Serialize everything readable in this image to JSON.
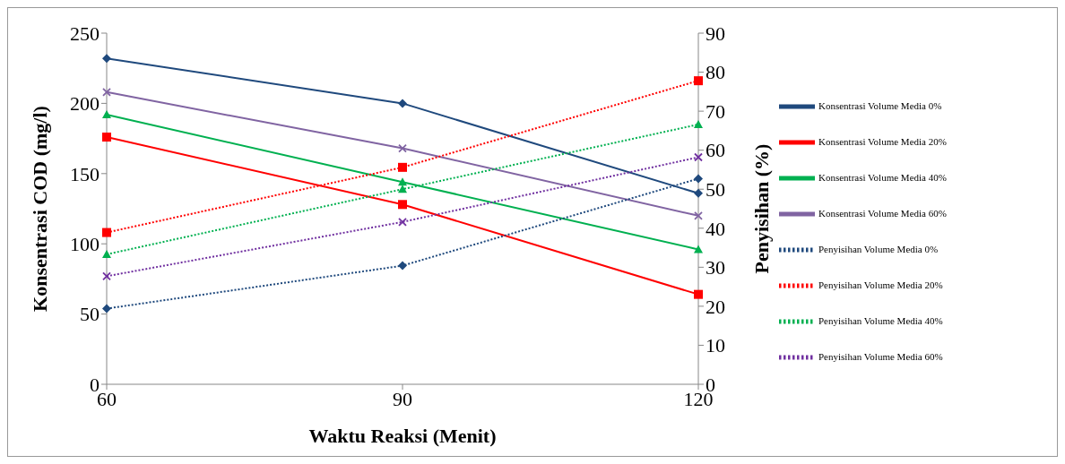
{
  "chart_data": {
    "type": "line",
    "xlabel": "Waktu Reaksi (Menit)",
    "ylabel": "Konsentrasi COD (mg/l)",
    "y2label": "Penyisihan (%)",
    "categories": [
      "60",
      "90",
      "120"
    ],
    "ylim": [
      0,
      250
    ],
    "yticks": [
      0,
      50,
      100,
      150,
      200,
      250
    ],
    "y2lim": [
      0,
      90
    ],
    "y2ticks": [
      0,
      10,
      20,
      30,
      40,
      50,
      60,
      70,
      80,
      90
    ],
    "grid": false,
    "legend": "right",
    "series": [
      {
        "name": "Konsentrasi Volume Media 0%",
        "color": "#1f497d",
        "values": [
          232,
          200,
          136
        ],
        "marker": "diamond",
        "line_style": "solid"
      },
      {
        "name": "Konsentrasi Volume Media 20%",
        "color": "#ff0000",
        "values": [
          176,
          128,
          64
        ],
        "marker": "square",
        "line_style": "solid"
      },
      {
        "name": "Konsentrasi Volume Media 40%",
        "color": "#00b050",
        "values": [
          192,
          144,
          96
        ],
        "marker": "triangle",
        "line_style": "solid"
      },
      {
        "name": "Konsentrasi Volume Media 60%",
        "color": "#8064a2",
        "values": [
          208,
          168,
          120
        ],
        "marker": "cross",
        "line_style": "solid"
      },
      {
        "name": "Penyisihan Volume Media 0%",
        "color": "#1f497d",
        "values": [
          19.4,
          30.4,
          52.7
        ],
        "marker": "diamond",
        "line_style": "dotted",
        "axis": "y2"
      },
      {
        "name": "Penyisihan Volume Media 20%",
        "color": "#ff0000",
        "values": [
          38.9,
          55.6,
          77.8
        ],
        "marker": "square",
        "line_style": "dotted",
        "axis": "y2"
      },
      {
        "name": "Penyisihan Volume Media 40%",
        "color": "#00b050",
        "values": [
          33.3,
          50,
          66.6
        ],
        "marker": "triangle",
        "line_style": "dotted",
        "axis": "y2"
      },
      {
        "name": "Penyisihan Volume Media 60%",
        "color": "#7030a0",
        "values": [
          27.7,
          41.6,
          58.2
        ],
        "marker": "cross",
        "line_style": "dotted",
        "axis": "y2"
      }
    ]
  }
}
